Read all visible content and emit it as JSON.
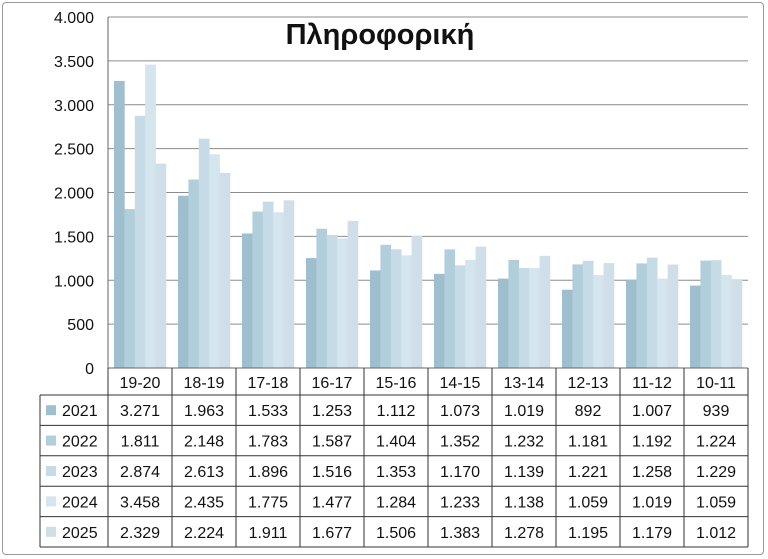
{
  "chart_data": {
    "type": "bar",
    "title": "Πληροφορική",
    "categories": [
      "19-20",
      "18-19",
      "17-18",
      "16-17",
      "15-16",
      "14-15",
      "13-14",
      "12-13",
      "11-12",
      "10-11"
    ],
    "series": [
      {
        "name": "2021",
        "color": "#9fbfcf",
        "values": [
          3271,
          1963,
          1533,
          1253,
          1112,
          1073,
          1019,
          892,
          1007,
          939
        ],
        "labels": [
          "3.271",
          "1.963",
          "1.533",
          "1.253",
          "1.112",
          "1.073",
          "1.019",
          "892",
          "1.007",
          "939"
        ]
      },
      {
        "name": "2022",
        "color": "#b3cedb",
        "values": [
          1811,
          2148,
          1783,
          1587,
          1404,
          1352,
          1232,
          1181,
          1192,
          1224
        ],
        "labels": [
          "1.811",
          "2.148",
          "1.783",
          "1.587",
          "1.404",
          "1.352",
          "1.232",
          "1.181",
          "1.192",
          "1.224"
        ]
      },
      {
        "name": "2023",
        "color": "#c6dbe5",
        "values": [
          2874,
          2613,
          1896,
          1516,
          1353,
          1170,
          1139,
          1221,
          1258,
          1229
        ],
        "labels": [
          "2.874",
          "2.613",
          "1.896",
          "1.516",
          "1.353",
          "1.170",
          "1.139",
          "1.221",
          "1.258",
          "1.229"
        ]
      },
      {
        "name": "2024",
        "color": "#d5e5ed",
        "values": [
          3458,
          2435,
          1775,
          1477,
          1284,
          1233,
          1138,
          1059,
          1019,
          1059
        ],
        "labels": [
          "3.458",
          "2.435",
          "1.775",
          "1.477",
          "1.284",
          "1.233",
          "1.138",
          "1.059",
          "1.019",
          "1.059"
        ]
      },
      {
        "name": "2025",
        "color": "#cfdee7",
        "values": [
          2329,
          2224,
          1911,
          1677,
          1506,
          1383,
          1278,
          1195,
          1179,
          1012
        ],
        "labels": [
          "2.329",
          "2.224",
          "1.911",
          "1.677",
          "1.506",
          "1.383",
          "1.278",
          "1.195",
          "1.179",
          "1.012"
        ]
      }
    ],
    "yticks": [
      0,
      500,
      1000,
      1500,
      2000,
      2500,
      3000,
      3500,
      4000
    ],
    "ytick_labels": [
      "0",
      "500",
      "1.000",
      "1.500",
      "2.000",
      "2.500",
      "3.000",
      "3.500",
      "4.000"
    ],
    "ylim": [
      0,
      4000
    ],
    "grid": true,
    "legend": "data-table-left"
  }
}
